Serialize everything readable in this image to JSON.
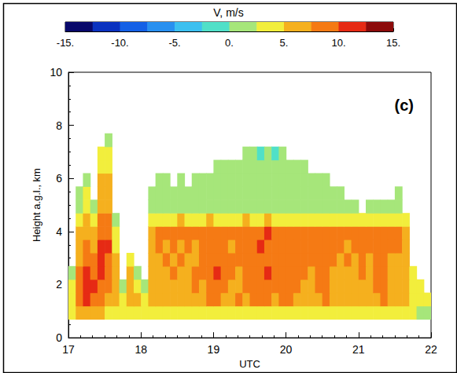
{
  "chart_data": {
    "type": "heatmap",
    "colorbar_label": "V, m/s",
    "xlabel": "UTC",
    "ylabel": "Height a.g.l., km",
    "annotations": [
      "(c)"
    ],
    "xlim": [
      17,
      22
    ],
    "xticks": [
      17,
      18,
      19,
      20,
      21,
      22
    ],
    "ylim": [
      0,
      10
    ],
    "yticks": [
      0,
      2,
      4,
      6,
      8,
      10
    ],
    "time_bins": [
      17,
      17.1,
      17.2,
      17.3,
      17.4,
      17.5,
      17.6,
      17.7,
      17.8,
      17.9,
      18,
      18.1,
      18.2,
      18.3,
      18.4,
      18.5,
      18.6,
      18.7,
      18.8,
      18.9,
      19,
      19.1,
      19.2,
      19.3,
      19.4,
      19.5,
      19.6,
      19.7,
      19.8,
      19.9,
      20,
      20.1,
      20.2,
      20.3,
      20.4,
      20.5,
      20.6,
      20.7,
      20.8,
      20.9,
      21,
      21.1,
      21.2,
      21.3,
      21.4,
      21.5,
      21.6,
      21.7,
      21.8,
      21.9,
      22
    ],
    "height_bins": [
      0.7,
      1.2,
      1.7,
      2.2,
      2.7,
      3.2,
      3.7,
      4.2,
      4.7,
      5.2,
      5.7,
      6.2,
      6.7,
      7.2,
      7.7
    ],
    "cells": [
      [
        3,
        5,
        6,
        6,
        5,
        4,
        3,
        3,
        4,
        3,
        3,
        3,
        3,
        3,
        4,
        3,
        3,
        4,
        3,
        4,
        4,
        3,
        3,
        4,
        3,
        4,
        4,
        4,
        3,
        4,
        3,
        3,
        3,
        3,
        4,
        3,
        3,
        3,
        3,
        3,
        3,
        3,
        4,
        3,
        3,
        3,
        3,
        3,
        2,
        2
      ],
      [
        4,
        8,
        10,
        9,
        8,
        7,
        5,
        4,
        5,
        5,
        4,
        5,
        6,
        6,
        7,
        6,
        7,
        7,
        7,
        8,
        9,
        7,
        7,
        8,
        7,
        8,
        9,
        8,
        7,
        8,
        8,
        7,
        7,
        7,
        7,
        8,
        7,
        7,
        6,
        7,
        7,
        6,
        7,
        8,
        6,
        6,
        6,
        4,
        4,
        3
      ],
      [
        3,
        9,
        11,
        10,
        9,
        8,
        6,
        2,
        6,
        4,
        2,
        6,
        7,
        7,
        7,
        7,
        7,
        8,
        7,
        8,
        9,
        8,
        7,
        7,
        8,
        8,
        9,
        9,
        8,
        8,
        9,
        8,
        7,
        7,
        8,
        8,
        7,
        7,
        7,
        7,
        7,
        7,
        8,
        8,
        7,
        7,
        6,
        4,
        3,
        null
      ],
      [
        2,
        8,
        10,
        9,
        10,
        9,
        6,
        null,
        5,
        2,
        null,
        6,
        7,
        7,
        8,
        7,
        7,
        8,
        8,
        8,
        10,
        8,
        8,
        7,
        8,
        9,
        9,
        10,
        8,
        9,
        9,
        8,
        8,
        7,
        8,
        9,
        7,
        7,
        7,
        7,
        8,
        7,
        8,
        9,
        7,
        7,
        6,
        3,
        null,
        null
      ],
      [
        null,
        7,
        9,
        8,
        11,
        9,
        5,
        null,
        3,
        null,
        null,
        7,
        7,
        8,
        7,
        8,
        7,
        7,
        8,
        8,
        9,
        8,
        8,
        8,
        8,
        9,
        9,
        9,
        8,
        9,
        8,
        8,
        8,
        8,
        8,
        9,
        8,
        7,
        8,
        7,
        8,
        7,
        8,
        9,
        7,
        7,
        7,
        null,
        null,
        null
      ],
      [
        null,
        6,
        8,
        7,
        10,
        10,
        4,
        null,
        null,
        null,
        null,
        7,
        8,
        7,
        8,
        7,
        8,
        7,
        8,
        8,
        9,
        8,
        7,
        8,
        8,
        9,
        10,
        9,
        8,
        9,
        9,
        8,
        8,
        8,
        8,
        9,
        8,
        8,
        7,
        8,
        8,
        8,
        8,
        9,
        8,
        8,
        7,
        null,
        null,
        null
      ],
      [
        null,
        5,
        7,
        6,
        9,
        9,
        3,
        null,
        null,
        null,
        null,
        7,
        8,
        8,
        8,
        8,
        8,
        8,
        8,
        8,
        9,
        9,
        8,
        8,
        8,
        9,
        9,
        10,
        8,
        9,
        9,
        8,
        8,
        8,
        8,
        9,
        8,
        8,
        8,
        8,
        8,
        8,
        8,
        9,
        8,
        8,
        7,
        null,
        null,
        null
      ],
      [
        null,
        4,
        6,
        4,
        8,
        8,
        2,
        null,
        null,
        null,
        null,
        4,
        4,
        4,
        4,
        5,
        4,
        4,
        4,
        5,
        4,
        4,
        4,
        4,
        5,
        4,
        4,
        5,
        4,
        4,
        4,
        4,
        4,
        4,
        4,
        4,
        4,
        4,
        4,
        4,
        3,
        4,
        4,
        4,
        4,
        4,
        3,
        null,
        null,
        null
      ],
      [
        null,
        2,
        4,
        2,
        7,
        7,
        null,
        null,
        null,
        null,
        null,
        2,
        2,
        2,
        2,
        2,
        2,
        2,
        2,
        2,
        2,
        2,
        2,
        2,
        2,
        2,
        2,
        2,
        2,
        2,
        2,
        2,
        2,
        2,
        2,
        2,
        2,
        2,
        2,
        2,
        null,
        2,
        2,
        2,
        2,
        2,
        null,
        null,
        null,
        null
      ],
      [
        null,
        1,
        3,
        null,
        6,
        6,
        null,
        null,
        null,
        null,
        null,
        1,
        1,
        1,
        1,
        1,
        1,
        2,
        1,
        2,
        2,
        1,
        2,
        1,
        2,
        2,
        2,
        2,
        1,
        2,
        2,
        1,
        1,
        1,
        1,
        1,
        1,
        1,
        null,
        null,
        null,
        null,
        null,
        null,
        null,
        1,
        null,
        null,
        null,
        null
      ],
      [
        null,
        null,
        2,
        null,
        5,
        5,
        null,
        null,
        null,
        null,
        null,
        null,
        1,
        1,
        null,
        1,
        null,
        1,
        1,
        1,
        1,
        1,
        1,
        1,
        1,
        1,
        1,
        1,
        1,
        1,
        1,
        1,
        1,
        1,
        1,
        1,
        null,
        null,
        null,
        null,
        null,
        null,
        null,
        null,
        null,
        null,
        null,
        null,
        null,
        null
      ],
      [
        null,
        null,
        null,
        null,
        4,
        4,
        null,
        null,
        null,
        null,
        null,
        null,
        null,
        null,
        null,
        null,
        null,
        null,
        null,
        null,
        1,
        1,
        1,
        1,
        1,
        1,
        1,
        1,
        1,
        1,
        1,
        1,
        1,
        null,
        null,
        null,
        null,
        null,
        null,
        null,
        null,
        null,
        null,
        null,
        null,
        null,
        null,
        null,
        null,
        null
      ],
      [
        null,
        null,
        null,
        null,
        3,
        3,
        null,
        null,
        null,
        null,
        null,
        null,
        null,
        null,
        null,
        null,
        null,
        null,
        null,
        null,
        null,
        null,
        null,
        null,
        1,
        1,
        -2,
        1,
        -1,
        1,
        null,
        null,
        null,
        null,
        null,
        null,
        null,
        null,
        null,
        null,
        null,
        null,
        null,
        null,
        null,
        null,
        null,
        null,
        null,
        null
      ],
      [
        null,
        null,
        null,
        null,
        null,
        2,
        null,
        null,
        null,
        null,
        null,
        null,
        null,
        null,
        null,
        null,
        null,
        null,
        null,
        null,
        null,
        null,
        null,
        null,
        null,
        null,
        null,
        null,
        null,
        null,
        null,
        null,
        null,
        null,
        null,
        null,
        null,
        null,
        null,
        null,
        null,
        null,
        null,
        null,
        null,
        null,
        null,
        null,
        null,
        null
      ]
    ],
    "color_range": [
      -15,
      15
    ],
    "color_ticks": [
      {
        "value": -15,
        "label": "-15."
      },
      {
        "value": -10,
        "label": "-10."
      },
      {
        "value": -5,
        "label": "-5."
      },
      {
        "value": 0,
        "label": "0."
      },
      {
        "value": 5,
        "label": "5."
      },
      {
        "value": 10,
        "label": "10."
      },
      {
        "value": 15,
        "label": "15."
      }
    ],
    "colors": [
      "#08086b",
      "#0a32c0",
      "#1460e6",
      "#2890f0",
      "#3cc0f0",
      "#50e0c8",
      "#a6e67a",
      "#f2ee3c",
      "#f5b01e",
      "#f57a14",
      "#e62a14",
      "#8c0a0a"
    ]
  }
}
